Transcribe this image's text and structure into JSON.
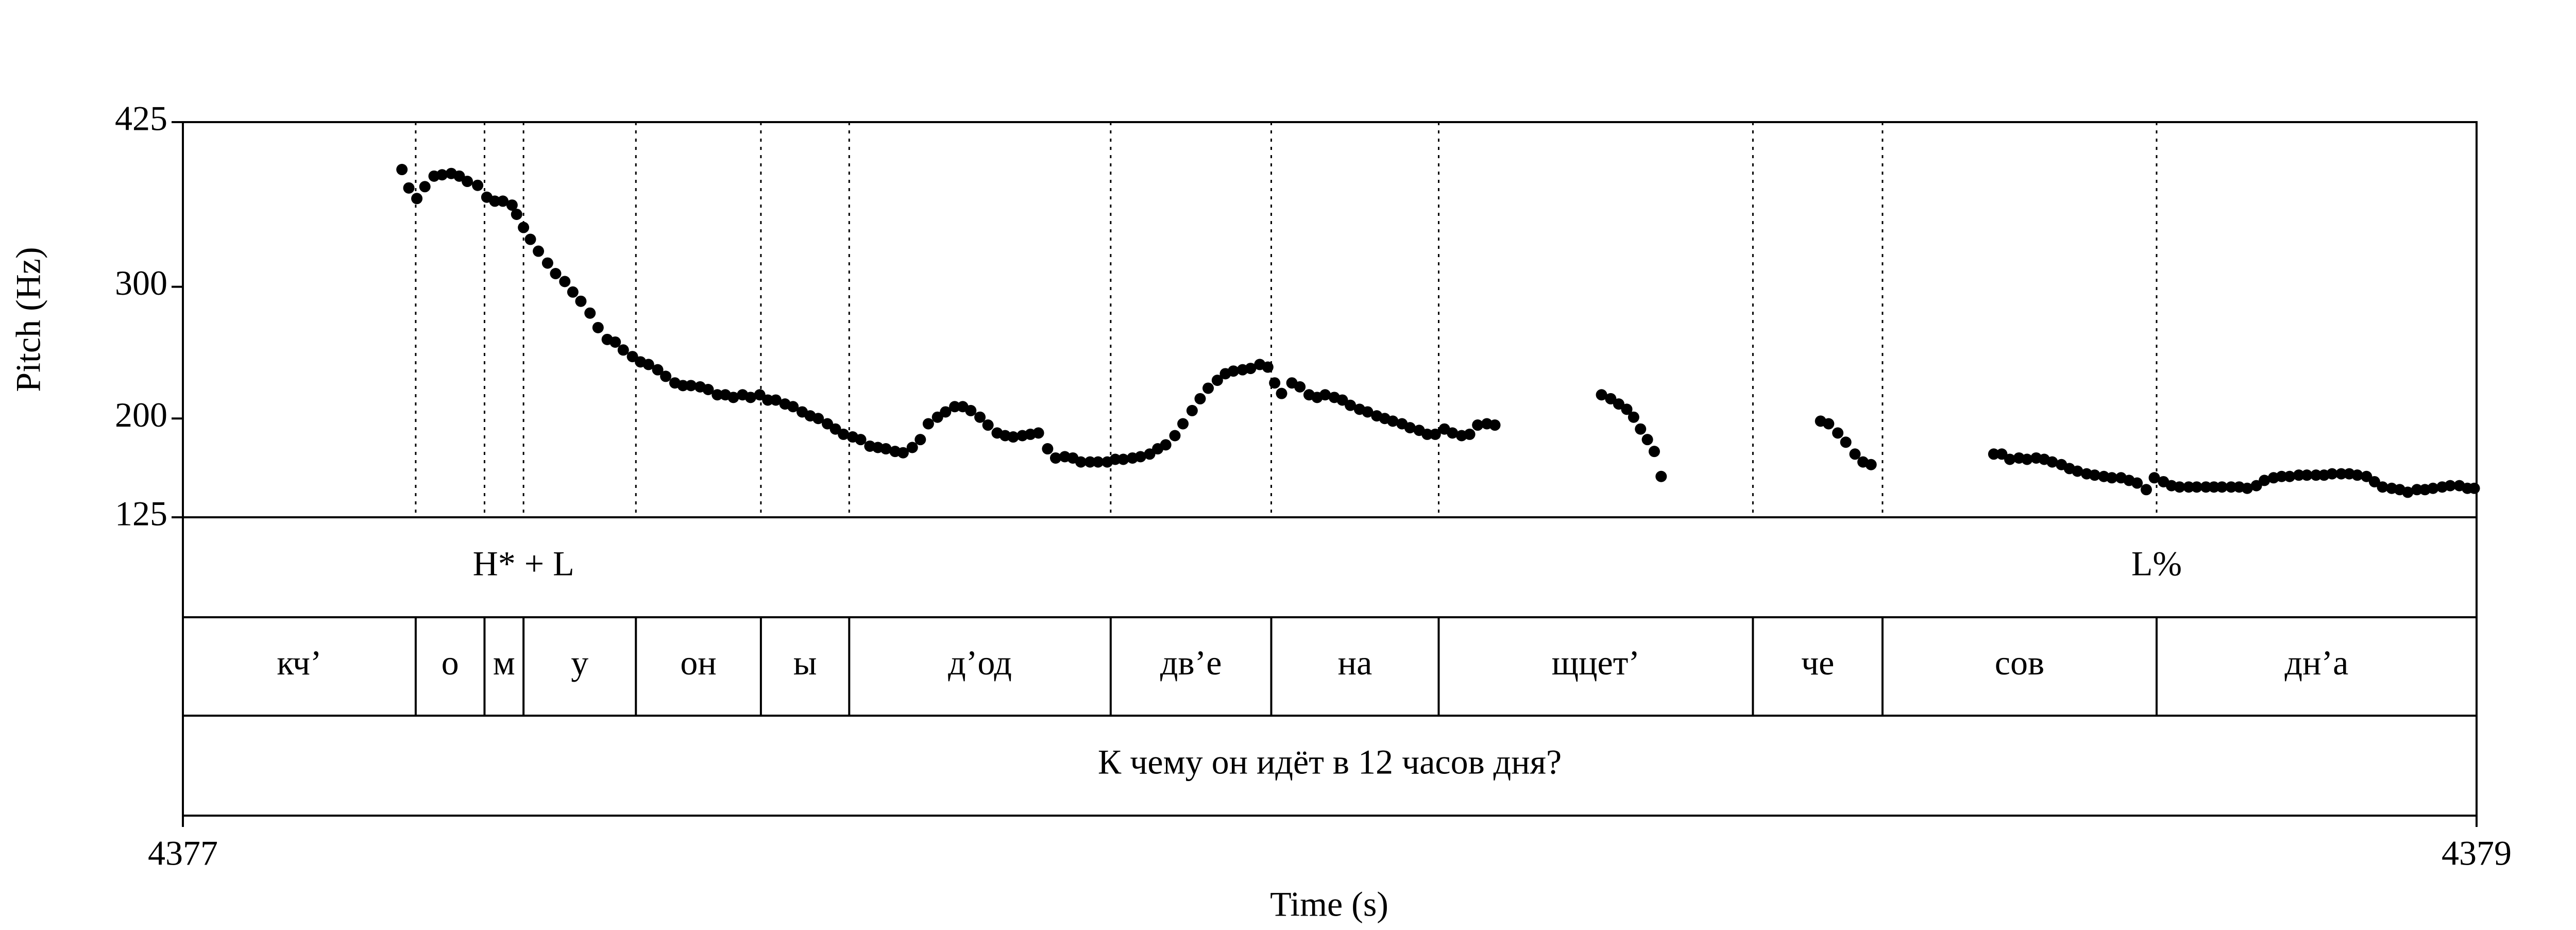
{
  "chart_data": {
    "type": "scatter",
    "xlabel": "Time (s)",
    "ylabel": "Pitch (Hz)",
    "color": "#000000",
    "xlim": [
      4377,
      4379
    ],
    "ylim": [
      125,
      425
    ],
    "xticks": [
      4377,
      4379
    ],
    "yticks": [
      125,
      200,
      300,
      425
    ],
    "x": [
      4377.191,
      4377.197,
      4377.204,
      4377.211,
      4377.219,
      4377.226,
      4377.234,
      4377.241,
      4377.248,
      4377.257,
      4377.265,
      4377.272,
      4377.279,
      4377.287,
      4377.291,
      4377.297,
      4377.303,
      4377.31,
      4377.318,
      4377.325,
      4377.333,
      4377.34,
      4377.347,
      4377.355,
      4377.362,
      4377.37,
      4377.377,
      4377.384,
      4377.392,
      4377.399,
      4377.406,
      4377.414,
      4377.421,
      4377.429,
      4377.436,
      4377.443,
      4377.451,
      4377.458,
      4377.466,
      4377.473,
      4377.48,
      4377.488,
      4377.495,
      4377.503,
      4377.51,
      4377.517,
      4377.525,
      4377.532,
      4377.54,
      4377.547,
      4377.554,
      4377.562,
      4377.569,
      4377.576,
      4377.584,
      4377.591,
      4377.599,
      4377.606,
      4377.613,
      4377.621,
      4377.628,
      4377.636,
      4377.643,
      4377.65,
      4377.658,
      4377.665,
      4377.673,
      4377.68,
      4377.687,
      4377.695,
      4377.702,
      4377.71,
      4377.717,
      4377.724,
      4377.732,
      4377.739,
      4377.746,
      4377.754,
      4377.761,
      4377.769,
      4377.776,
      4377.783,
      4377.791,
      4377.798,
      4377.806,
      4377.813,
      4377.82,
      4377.828,
      4377.835,
      4377.843,
      4377.85,
      4377.857,
      4377.865,
      4377.872,
      4377.88,
      4377.887,
      4377.894,
      4377.902,
      4377.909,
      4377.916,
      4377.924,
      4377.931,
      4377.939,
      4377.946,
      4377.952,
      4377.958,
      4377.967,
      4377.974,
      4377.982,
      4377.989,
      4377.996,
      4378.004,
      4378.011,
      4378.018,
      4378.026,
      4378.033,
      4378.041,
      4378.048,
      4378.055,
      4378.063,
      4378.07,
      4378.078,
      4378.085,
      4378.092,
      4378.1,
      4378.107,
      4378.115,
      4378.122,
      4378.129,
      4378.137,
      4378.144,
      4378.237,
      4378.245,
      4378.252,
      4378.259,
      4378.265,
      4378.271,
      4378.277,
      4378.283,
      4378.289,
      4378.428,
      4378.435,
      4378.443,
      4378.45,
      4378.458,
      4378.465,
      4378.472,
      4378.579,
      4378.586,
      4378.593,
      4378.601,
      4378.608,
      4378.616,
      4378.623,
      4378.63,
      4378.638,
      4378.645,
      4378.652,
      4378.66,
      4378.667,
      4378.675,
      4378.682,
      4378.69,
      4378.697,
      4378.704,
      4378.712,
      4378.719,
      4378.727,
      4378.734,
      4378.741,
      4378.749,
      4378.756,
      4378.764,
      4378.771,
      4378.778,
      4378.786,
      4378.793,
      4378.8,
      4378.808,
      4378.815,
      4378.823,
      4378.83,
      4378.837,
      4378.845,
      4378.852,
      4378.86,
      4378.867,
      4378.874,
      4378.882,
      4378.889,
      4378.896,
      4378.904,
      4378.911,
      4378.918,
      4378.926,
      4378.933,
      4378.94,
      4378.948,
      4378.955,
      4378.962,
      4378.97,
      4378.977,
      4378.985,
      4378.992,
      4378.998
    ],
    "values": [
      389,
      375,
      367,
      376,
      384,
      385,
      386,
      384,
      380,
      377,
      368,
      365,
      365,
      362,
      355,
      345,
      336,
      327,
      318,
      310,
      304,
      296,
      289,
      280,
      269,
      260,
      258,
      252,
      247,
      243,
      241,
      237,
      232,
      227,
      225,
      225,
      224,
      222,
      218,
      218,
      216,
      218,
      216,
      218,
      214,
      214,
      211,
      209,
      205,
      202,
      200,
      196,
      192,
      188,
      186,
      184,
      179,
      178,
      177,
      175,
      174,
      178,
      184,
      196,
      201,
      205,
      209,
      209,
      206,
      201,
      195,
      189,
      187,
      186,
      187,
      188,
      189,
      177,
      170,
      171,
      170,
      167,
      167,
      167,
      167,
      169,
      169,
      170,
      171,
      173,
      177,
      180,
      187,
      196,
      206,
      215,
      223,
      229,
      234,
      236,
      237,
      238,
      241,
      239,
      227,
      219,
      227,
      224,
      218,
      216,
      218,
      216,
      214,
      210,
      207,
      205,
      202,
      200,
      198,
      196,
      193,
      191,
      188,
      188,
      192,
      189,
      187,
      188,
      195,
      196,
      195,
      218,
      215,
      211,
      207,
      201,
      192,
      184,
      175,
      156,
      198,
      196,
      189,
      182,
      173,
      167,
      165,
      173,
      173,
      169,
      170,
      169,
      170,
      169,
      167,
      165,
      162,
      160,
      158,
      157,
      156,
      155,
      155,
      153,
      151,
      146,
      155,
      152,
      149,
      148,
      148,
      148,
      148,
      148,
      148,
      148,
      148,
      147,
      149,
      153,
      155,
      156,
      156,
      157,
      157,
      157,
      157,
      158,
      158,
      158,
      157,
      156,
      152,
      148,
      147,
      146,
      144,
      146,
      146,
      147,
      148,
      149,
      149,
      147,
      147
    ],
    "tiers": [
      {
        "points": [
          {
            "time": 4377.297,
            "label": "H* + L"
          },
          {
            "time": 4378.721,
            "label": "L%"
          }
        ]
      },
      {
        "boundaries": [
          4377.203,
          4377.263,
          4377.297,
          4377.395,
          4377.504,
          4377.581,
          4377.809,
          4377.949,
          4378.095,
          4378.369,
          4378.482,
          4378.721
        ],
        "labels": [
          "кч’",
          "о",
          "м",
          "у",
          "он",
          "ы",
          "д’од",
          "дв’е",
          "на",
          "щцет’",
          "че",
          "сов",
          "дн’а"
        ]
      },
      {
        "labels": [
          "К чему он идёт в 12 часов дня?"
        ]
      }
    ]
  }
}
